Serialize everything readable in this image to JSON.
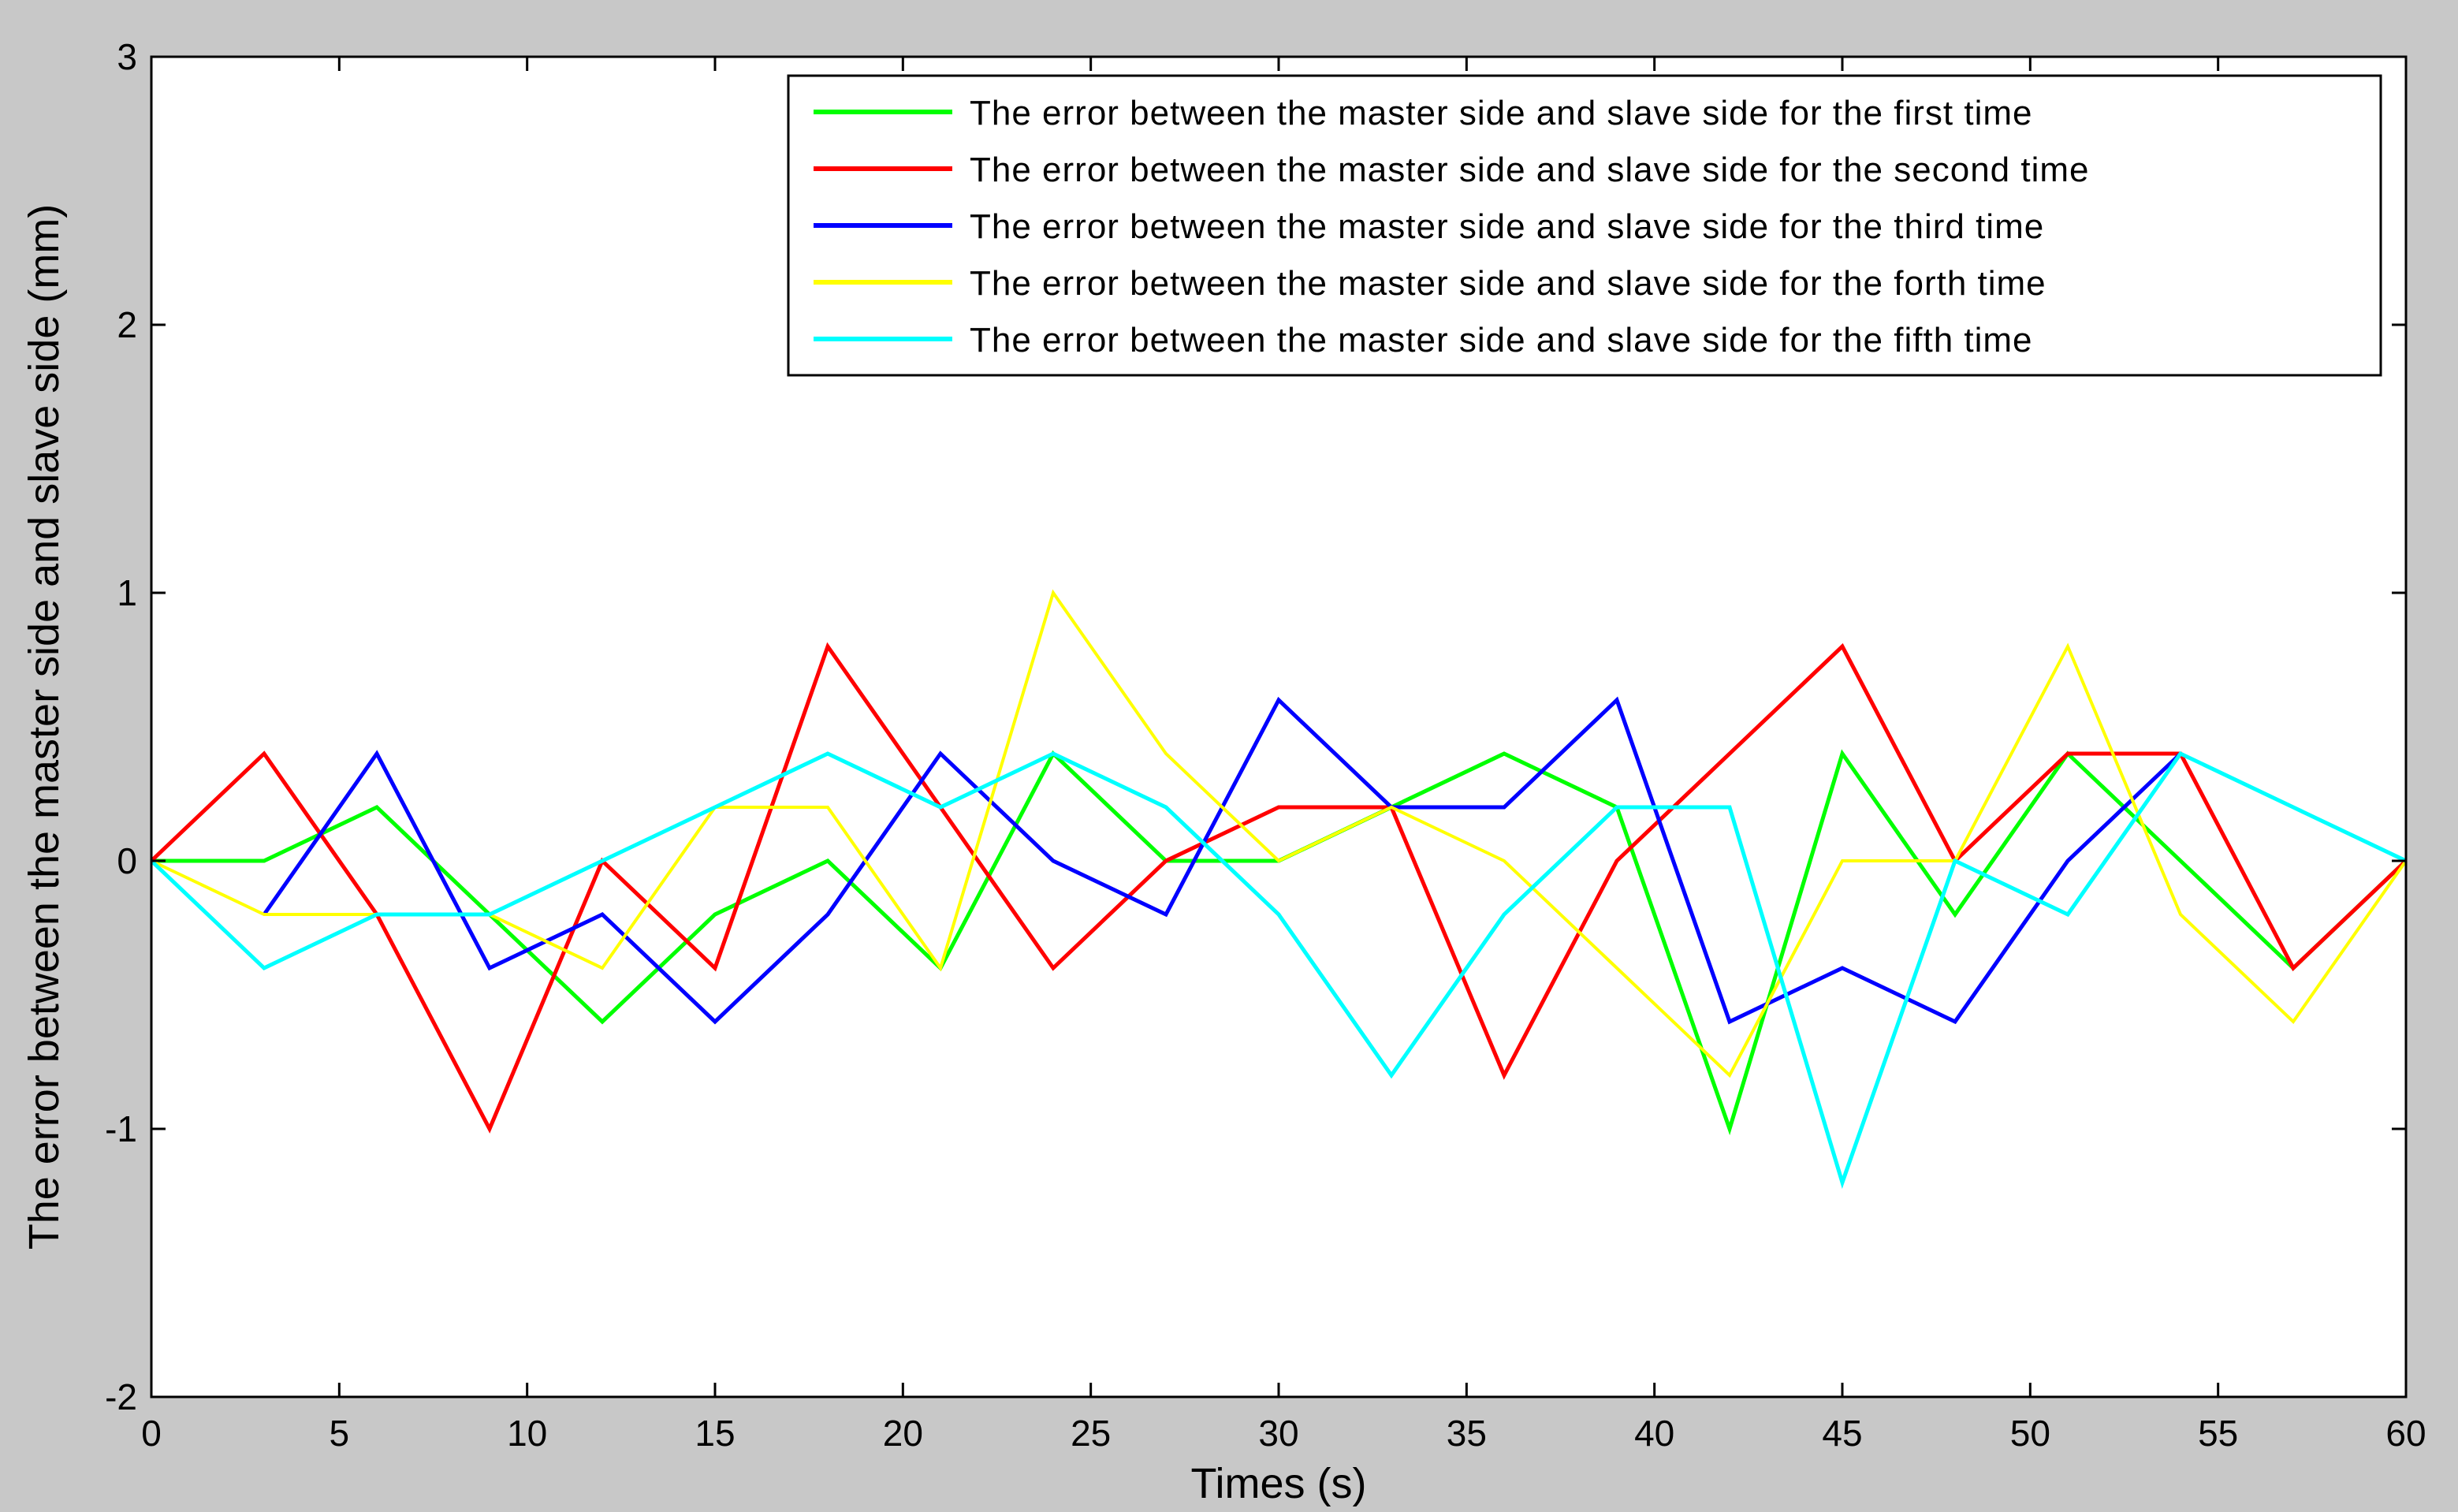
{
  "colors": {
    "window_background": "#c8c8c8",
    "axes_background": "#ffffff",
    "first": "#00ff00",
    "second": "#ff0000",
    "third": "#0000ff",
    "forth": "#ffff00",
    "fifth": "#00ffff"
  },
  "chart_data": {
    "type": "line",
    "title": "",
    "xlabel": "Times (s)",
    "ylabel": "The error between the master side and slave side (mm)",
    "xlim": [
      0,
      60
    ],
    "ylim": [
      -2,
      3
    ],
    "xticks": [
      0,
      5,
      10,
      15,
      20,
      25,
      30,
      35,
      40,
      45,
      50,
      55,
      60
    ],
    "yticks": [
      -2,
      -1,
      0,
      1,
      2,
      3
    ],
    "grid": false,
    "legend_position": "top-right",
    "series": [
      {
        "name": "The error between the master side and slave side for the first time",
        "color": "#00ff00",
        "x": [
          0,
          3,
          6,
          9,
          12,
          15,
          18,
          21,
          24,
          27,
          30,
          33,
          36,
          39,
          42,
          45,
          48,
          51,
          54,
          57,
          60
        ],
        "y": [
          0,
          0,
          0.2,
          -0.2,
          -0.6,
          -0.2,
          0,
          -0.4,
          0.4,
          0,
          0,
          0.2,
          0.4,
          0.2,
          -1.0,
          0.4,
          -0.2,
          0.4,
          0,
          -0.4,
          0
        ]
      },
      {
        "name": "The error between the master side and slave side for the second time",
        "color": "#ff0000",
        "x": [
          0,
          3,
          6,
          9,
          12,
          15,
          18,
          21,
          24,
          27,
          30,
          33,
          36,
          39,
          42,
          45,
          48,
          51,
          54,
          57,
          60
        ],
        "y": [
          0,
          0.4,
          -0.2,
          -1.0,
          0,
          -0.4,
          0.8,
          0.2,
          -0.4,
          0,
          0.2,
          0.2,
          -0.8,
          0,
          0.4,
          0.8,
          0,
          0.4,
          0.4,
          -0.4,
          0
        ]
      },
      {
        "name": "The error between the master side and slave side for the third time",
        "color": "#0000ff",
        "x": [
          3,
          6,
          9,
          12,
          15,
          18,
          21,
          24,
          27,
          30,
          33,
          36,
          39,
          42,
          45,
          48,
          51,
          54
        ],
        "y": [
          -0.2,
          0.4,
          -0.4,
          -0.2,
          -0.6,
          -0.2,
          0.4,
          0,
          -0.2,
          0.6,
          0.2,
          0.2,
          0.6,
          -0.6,
          -0.4,
          -0.6,
          0,
          0.4
        ]
      },
      {
        "name": "The error between the master side and slave side for the forth time",
        "color": "#ffff00",
        "x": [
          0,
          3,
          6,
          9,
          12,
          15,
          18,
          21,
          24,
          27,
          30,
          33,
          36,
          39,
          42,
          45,
          48,
          51,
          54,
          57,
          60
        ],
        "y": [
          0,
          -0.2,
          -0.2,
          -0.2,
          -0.4,
          0.2,
          0.2,
          -0.4,
          1.0,
          0.4,
          0,
          0.2,
          0,
          -0.4,
          -0.8,
          0,
          0,
          0.8,
          -0.2,
          -0.6,
          0
        ]
      },
      {
        "name": "The error between the master side and slave side for the fifth time",
        "color": "#00ffff",
        "x": [
          0,
          3,
          6,
          9,
          12,
          15,
          18,
          21,
          24,
          27,
          30,
          33,
          36,
          39,
          42,
          45,
          48,
          51,
          54,
          57,
          60
        ],
        "y": [
          0,
          -0.4,
          -0.2,
          -0.2,
          0,
          0.2,
          0.4,
          0.2,
          0.4,
          0.2,
          -0.2,
          -0.8,
          -0.2,
          0.2,
          0.2,
          -1.2,
          0,
          -0.2,
          0.4,
          0.2,
          0
        ]
      }
    ]
  }
}
